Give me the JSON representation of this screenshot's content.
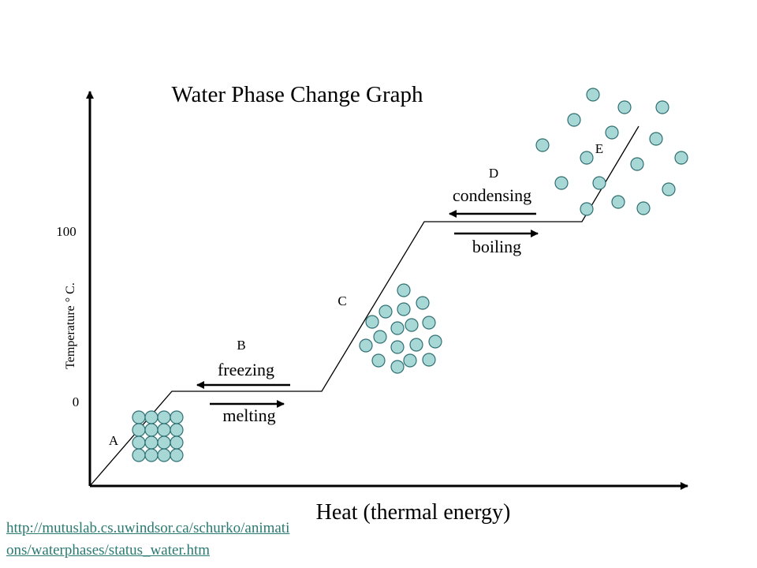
{
  "title": "Water Phase Change Graph",
  "xlabel": "Heat (thermal energy)",
  "ylabel": "Temperature ° C.",
  "y_ticks": [
    "100",
    "0"
  ],
  "point_labels": [
    "A",
    "B",
    "C",
    "D",
    "E"
  ],
  "processes": {
    "freezing": "freezing",
    "melting": "melting",
    "condensing": "condensing",
    "boiling": "boiling"
  },
  "link": {
    "line1": "http://mutuslab.cs.uwindsor.ca/schurko/animati",
    "line2": "ons/waterphases/status_water.htm"
  },
  "colors": {
    "particle_fill": "#a8d8d6",
    "particle_stroke": "#2f6f73",
    "link": "#2a7a72",
    "axis": "#000000"
  },
  "chart_data": {
    "type": "line",
    "title": "Water Phase Change Graph",
    "xlabel": "Heat (thermal energy)",
    "ylabel": "Temperature ° C.",
    "yticks": [
      100,
      0
    ],
    "segments": [
      "A",
      "B",
      "C",
      "D",
      "E"
    ],
    "plateaus": [
      {
        "label": "B",
        "temperature": 0,
        "processes": [
          "freezing",
          "melting"
        ]
      },
      {
        "label": "D",
        "temperature": 100,
        "processes": [
          "condensing",
          "boiling"
        ]
      }
    ]
  }
}
